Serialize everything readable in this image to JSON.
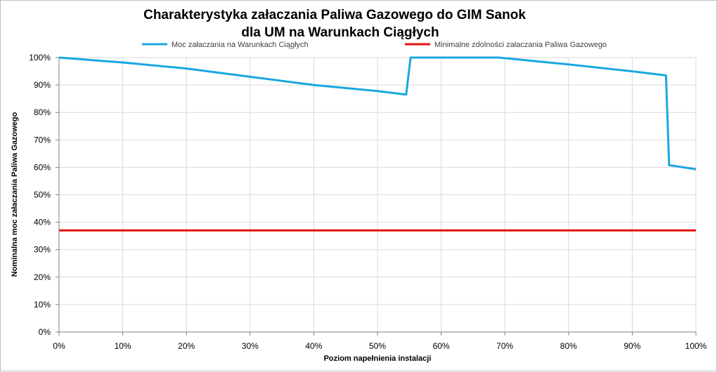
{
  "chart_data": {
    "type": "line",
    "title_line1": "Charakterystyka  załaczania Paliwa Gazowego do GIM Sanok",
    "title_line2": "dla UM na Warunkach Ciągłych",
    "xlabel": "Poziom napełnienia instalacji",
    "ylabel": "Nominalna moc załaczania Paliwa Gazowego",
    "xlim": [
      0,
      100
    ],
    "ylim": [
      0,
      100
    ],
    "x_ticks": [
      "0%",
      "10%",
      "20%",
      "30%",
      "40%",
      "50%",
      "60%",
      "70%",
      "80%",
      "90%",
      "100%"
    ],
    "y_ticks": [
      "0%",
      "10%",
      "20%",
      "30%",
      "40%",
      "50%",
      "60%",
      "70%",
      "80%",
      "90%",
      "100%"
    ],
    "grid": true,
    "legend_position": "top",
    "series": [
      {
        "name": "Moc załaczania na Warunkach Ciągłych",
        "color": "#1AA7DF",
        "points": [
          [
            0,
            100
          ],
          [
            10,
            98.2
          ],
          [
            20,
            96.0
          ],
          [
            30,
            93.0
          ],
          [
            40,
            90.0
          ],
          [
            50,
            87.8
          ],
          [
            54.5,
            86.5
          ],
          [
            55.2,
            100
          ],
          [
            69,
            100
          ],
          [
            80,
            97.5
          ],
          [
            90,
            95.0
          ],
          [
            95.3,
            93.5
          ],
          [
            95.8,
            60.8
          ],
          [
            100,
            59.3
          ]
        ]
      },
      {
        "name": "Minimalne zdolności załaczania Paliwa Gazowego",
        "color": "#E3120B",
        "points": [
          [
            0,
            37
          ],
          [
            100,
            37
          ]
        ]
      }
    ]
  }
}
